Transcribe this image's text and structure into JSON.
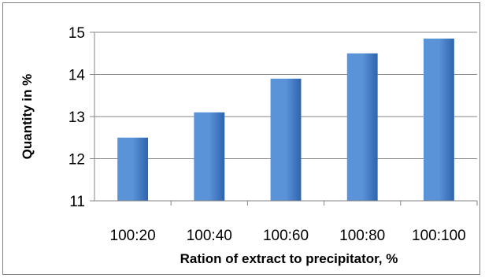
{
  "chart_data": {
    "type": "bar",
    "title": "",
    "xlabel": "Ration of extract to precipitator, %",
    "ylabel": "Quantity in %",
    "categories": [
      "100:20",
      "100:40",
      "100:60",
      "100:80",
      "100:100"
    ],
    "values": [
      12.5,
      13.1,
      13.9,
      14.5,
      14.85
    ],
    "ylim": [
      11,
      15
    ],
    "yticks": [
      11,
      12,
      13,
      14,
      15
    ],
    "grid": true,
    "legend": "none",
    "colors": {
      "bar_light": "#5b93d9",
      "bar_dark": "#2e64ae",
      "grid": "#868686",
      "axis": "#868686"
    }
  }
}
